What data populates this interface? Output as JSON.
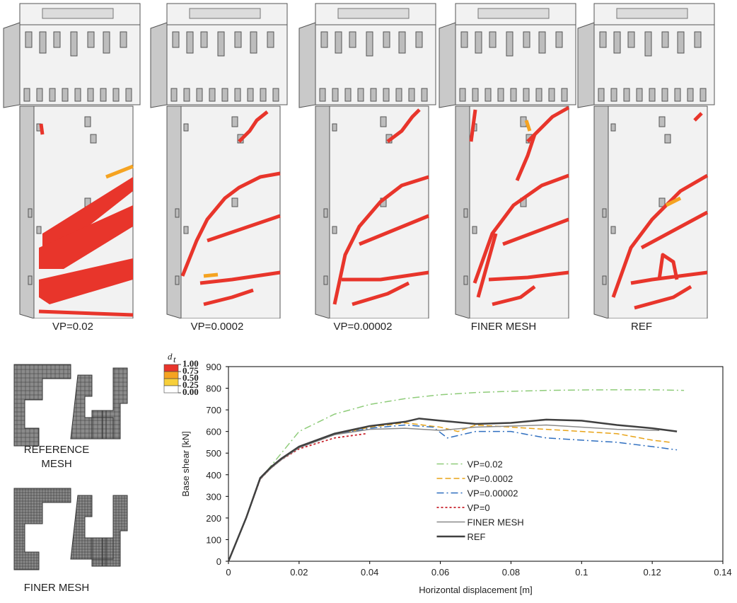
{
  "panels": [
    {
      "label": "VP=0.02"
    },
    {
      "label": "VP=0.0002"
    },
    {
      "label": "VP=0.00002"
    },
    {
      "label": "FINER MESH"
    },
    {
      "label": "REF"
    }
  ],
  "mesh_labels": [
    [
      "REFERENCE",
      "MESH"
    ],
    [
      "FINER MESH"
    ]
  ],
  "colorbar": {
    "symbol": "d",
    "subscript": "t",
    "colors": [
      "#e8352b",
      "#f5a321",
      "#f7cf3a",
      "#ffffff"
    ],
    "ticks": [
      {
        "value": 1,
        "label": "1.00"
      },
      {
        "value": 0.75,
        "label": "0.75"
      },
      {
        "value": 0.5,
        "label": "0.50"
      },
      {
        "value": 0.25,
        "label": "0.25"
      },
      {
        "value": 0,
        "label": "0.00"
      }
    ]
  },
  "chart_data": {
    "type": "line",
    "x_label": "Horizontal displacement [m]",
    "y_label": "Base shear [kN]",
    "xlim": [
      0,
      0.14
    ],
    "xticks": [
      0,
      0.02,
      0.04,
      0.06,
      0.08,
      0.1,
      0.12,
      0.14
    ],
    "ylim": [
      0,
      900
    ],
    "yticks": [
      0,
      100,
      200,
      300,
      400,
      500,
      600,
      700,
      800,
      900
    ],
    "legend_position": "lower center",
    "series": [
      {
        "name": "VP=0.02",
        "color": "#8fcc7a",
        "style": "dash-dot",
        "width": 1.5,
        "x": [
          0,
          0.005,
          0.009,
          0.012,
          0.02,
          0.03,
          0.04,
          0.05,
          0.06,
          0.07,
          0.08,
          0.09,
          0.1,
          0.11,
          0.12,
          0.129
        ],
        "values": [
          0,
          200,
          380,
          440,
          600,
          680,
          725,
          752,
          770,
          780,
          786,
          790,
          792,
          793,
          793,
          790
        ]
      },
      {
        "name": "VP=0.0002",
        "color": "#e8a317",
        "style": "dash",
        "width": 1.5,
        "x": [
          0,
          0.005,
          0.009,
          0.012,
          0.015,
          0.02,
          0.03,
          0.04,
          0.05,
          0.06,
          0.065,
          0.07,
          0.08,
          0.09,
          0.1,
          0.11,
          0.12,
          0.125
        ],
        "values": [
          0,
          200,
          380,
          430,
          470,
          525,
          585,
          620,
          640,
          620,
          600,
          630,
          620,
          610,
          600,
          590,
          560,
          550
        ]
      },
      {
        "name": "VP=0.00002",
        "color": "#2f6fc0",
        "style": "dash-dot",
        "width": 1.5,
        "x": [
          0,
          0.005,
          0.009,
          0.012,
          0.015,
          0.02,
          0.03,
          0.04,
          0.05,
          0.058,
          0.062,
          0.07,
          0.08,
          0.09,
          0.1,
          0.11,
          0.12,
          0.127
        ],
        "values": [
          0,
          200,
          380,
          430,
          470,
          525,
          585,
          615,
          630,
          620,
          570,
          600,
          600,
          570,
          560,
          550,
          530,
          515
        ]
      },
      {
        "name": "VP=0",
        "color": "#c8202a",
        "style": "dot",
        "width": 1.8,
        "x": [
          0,
          0.005,
          0.009,
          0.012,
          0.015,
          0.02,
          0.03,
          0.039
        ],
        "values": [
          0,
          200,
          380,
          430,
          470,
          520,
          570,
          590
        ]
      },
      {
        "name": "FINER MESH",
        "color": "#8a8a8a",
        "style": "solid",
        "width": 1.5,
        "x": [
          0,
          0.005,
          0.009,
          0.012,
          0.015,
          0.02,
          0.03,
          0.04,
          0.05,
          0.06,
          0.07,
          0.08,
          0.09,
          0.1,
          0.11,
          0.122
        ],
        "values": [
          0,
          200,
          380,
          430,
          470,
          525,
          585,
          610,
          615,
          605,
          620,
          625,
          630,
          620,
          610,
          605
        ]
      },
      {
        "name": "REF",
        "color": "#404040",
        "style": "solid",
        "width": 2.5,
        "x": [
          0,
          0.005,
          0.009,
          0.012,
          0.015,
          0.02,
          0.03,
          0.04,
          0.05,
          0.054,
          0.06,
          0.07,
          0.08,
          0.09,
          0.1,
          0.11,
          0.12,
          0.127
        ],
        "values": [
          0,
          200,
          385,
          435,
          475,
          530,
          590,
          625,
          645,
          660,
          650,
          635,
          640,
          655,
          650,
          630,
          615,
          600
        ]
      }
    ]
  }
}
